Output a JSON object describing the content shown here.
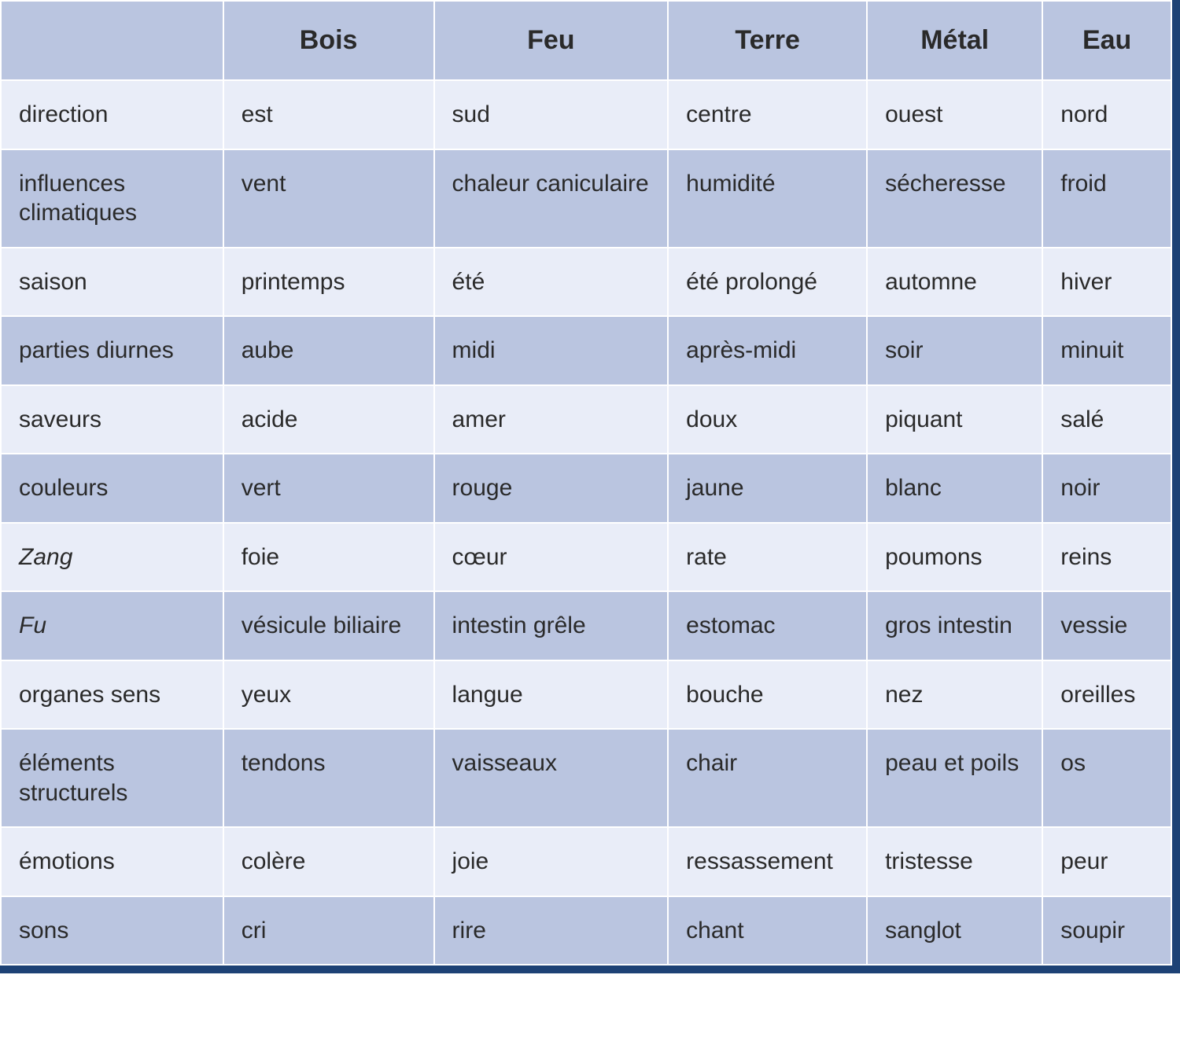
{
  "table": {
    "colors": {
      "header_bg": "#bac5e0",
      "row_light_bg": "#e9edf8",
      "row_dark_bg": "#bac5e0",
      "border": "#ffffff",
      "outer_border": "#1d4275",
      "text": "#2a2a2a"
    },
    "typography": {
      "header_fontsize": 34,
      "header_fontweight": 700,
      "cell_fontsize": 30,
      "cell_fontweight": 400
    },
    "column_widths_pct": [
      19,
      18,
      20,
      17,
      15,
      11
    ],
    "columns": [
      "",
      "Bois",
      "Feu",
      "Terre",
      "Métal",
      "Eau"
    ],
    "rows": [
      {
        "label": "direction",
        "italic": false,
        "shade": "light",
        "cells": [
          "est",
          "sud",
          "centre",
          "ouest",
          "nord"
        ]
      },
      {
        "label": "influences climatiques",
        "italic": false,
        "shade": "dark",
        "cells": [
          "vent",
          "chaleur caniculaire",
          "humidité",
          "sécheresse",
          "froid"
        ]
      },
      {
        "label": "saison",
        "italic": false,
        "shade": "light",
        "cells": [
          "printemps",
          "été",
          "été prolongé",
          "automne",
          "hiver"
        ]
      },
      {
        "label": "parties diurnes",
        "italic": false,
        "shade": "dark",
        "cells": [
          "aube",
          "midi",
          "après-midi",
          "soir",
          "minuit"
        ]
      },
      {
        "label": "saveurs",
        "italic": false,
        "shade": "light",
        "cells": [
          "acide",
          "amer",
          "doux",
          "piquant",
          "salé"
        ]
      },
      {
        "label": "couleurs",
        "italic": false,
        "shade": "dark",
        "cells": [
          "vert",
          "rouge",
          "jaune",
          "blanc",
          "noir"
        ]
      },
      {
        "label": "Zang",
        "italic": true,
        "shade": "light",
        "cells": [
          "foie",
          "cœur",
          "rate",
          "poumons",
          "reins"
        ]
      },
      {
        "label": "Fu",
        "italic": true,
        "shade": "dark",
        "cells": [
          "vésicule biliaire",
          "intestin grêle",
          "estomac",
          "gros intestin",
          "vessie"
        ]
      },
      {
        "label": "organes sens",
        "italic": false,
        "shade": "light",
        "cells": [
          "yeux",
          "langue",
          "bouche",
          "nez",
          "oreilles"
        ]
      },
      {
        "label": "éléments structurels",
        "italic": false,
        "shade": "dark",
        "cells": [
          "tendons",
          "vaisseaux",
          "chair",
          "peau et poils",
          "os"
        ]
      },
      {
        "label": "émotions",
        "italic": false,
        "shade": "light",
        "cells": [
          "colère",
          "joie",
          "ressassement",
          "tristesse",
          "peur"
        ]
      },
      {
        "label": "sons",
        "italic": false,
        "shade": "dark",
        "cells": [
          "cri",
          "rire",
          "chant",
          "sanglot",
          "soupir"
        ]
      }
    ]
  }
}
